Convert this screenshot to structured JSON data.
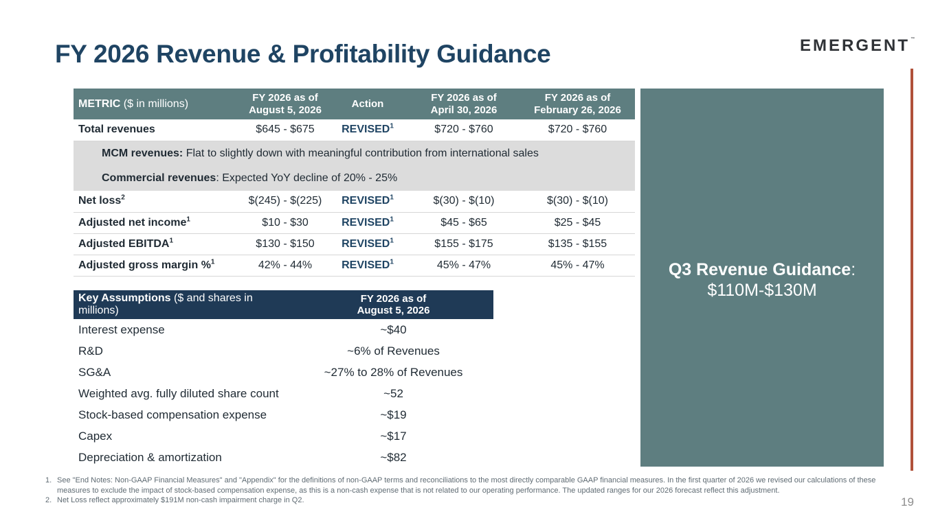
{
  "title": "FY 2026 Revenue & Profitability Guidance",
  "logo": {
    "text": "EMERGENT",
    "tm": "™"
  },
  "colors": {
    "title": "#1f4463",
    "header_teal": "#5e7e80",
    "header_navy": "#1f3a56",
    "accent": "#b0513a",
    "segment_bg": "#dcdcdc"
  },
  "guidance_table": {
    "headers": {
      "metric_bold": "METRIC",
      "metric_unit": " ($ in millions)",
      "col_aug_l1": "FY 2026 as of",
      "col_aug_l2": "August 5, 2026",
      "col_action": "Action",
      "col_apr_l1": "FY 2026 as of",
      "col_apr_l2": "April 30, 2026",
      "col_feb_l1": "FY 2026 as of",
      "col_feb_l2": "February 26, 2026"
    },
    "rows": [
      {
        "metric": "Total revenues",
        "metric_sup": "",
        "aug": "$645 - $675",
        "action": "REVISED",
        "action_sup": "1",
        "apr": "$720 - $760",
        "feb": "$720 - $760"
      },
      {
        "metric": "Net loss",
        "metric_sup": "2",
        "aug": "$(245) - $(225)",
        "action": "REVISED",
        "action_sup": "1",
        "apr": "$(30) - $(10)",
        "feb": "$(30) - $(10)"
      },
      {
        "metric": "Adjusted net income",
        "metric_sup": "1",
        "aug": "$10 - $30",
        "action": "REVISED",
        "action_sup": "1",
        "apr": "$45 - $65",
        "feb": "$25 - $45"
      },
      {
        "metric": "Adjusted EBITDA",
        "metric_sup": "1",
        "aug": "$130 - $150",
        "action": "REVISED",
        "action_sup": "1",
        "apr": "$155 - $175",
        "feb": "$135 - $155"
      },
      {
        "metric": "Adjusted gross margin %",
        "metric_sup": "1",
        "aug": "42% - 44%",
        "action": "REVISED",
        "action_sup": "1",
        "apr": "45% - 47%",
        "feb": "45% - 47%"
      }
    ],
    "segments": {
      "mcm_label": "MCM revenues:",
      "mcm_text": " Flat to slightly down with meaningful contribution from international sales",
      "commercial_label": "Commercial revenues",
      "commercial_text": ": Expected YoY decline of 20% - 25%"
    }
  },
  "side_panel": {
    "title": "Q3 Revenue Guidance",
    "colon": ":",
    "value": "$110M-$130M"
  },
  "assumptions": {
    "header_bold": "Key Assumptions",
    "header_unit": "  ($ and shares in millions)",
    "col_l1": "FY 2026 as of",
    "col_l2": "August 5, 2026",
    "rows": [
      {
        "label": "Interest expense",
        "value": "~$40"
      },
      {
        "label": "R&D",
        "value": "~6% of Revenues"
      },
      {
        "label": "SG&A",
        "value": "~27% to 28% of Revenues"
      },
      {
        "label": "Weighted avg. fully diluted share count",
        "value": "~52"
      },
      {
        "label": "Stock-based compensation expense",
        "value": "~$19"
      },
      {
        "label": "Capex",
        "value": "~$17"
      },
      {
        "label": "Depreciation & amortization",
        "value": "~$82"
      }
    ]
  },
  "footnotes": [
    {
      "num": "1.",
      "text": "See \"End Notes: Non-GAAP Financial Measures\" and \"Appendix\" for the definitions of non-GAAP terms and reconciliations to the most directly comparable GAAP financial measures. In the first quarter of 2026 we revised our calculations of these measures to exclude the impact of stock-based compensation expense, as this is a non-cash expense that is not related to our operating performance. The updated ranges for our 2026 forecast reflect this adjustment."
    },
    {
      "num": "2.",
      "text": "Net Loss reflect approximately $191M non-cash impairment charge in Q2."
    }
  ],
  "page_number": "19"
}
